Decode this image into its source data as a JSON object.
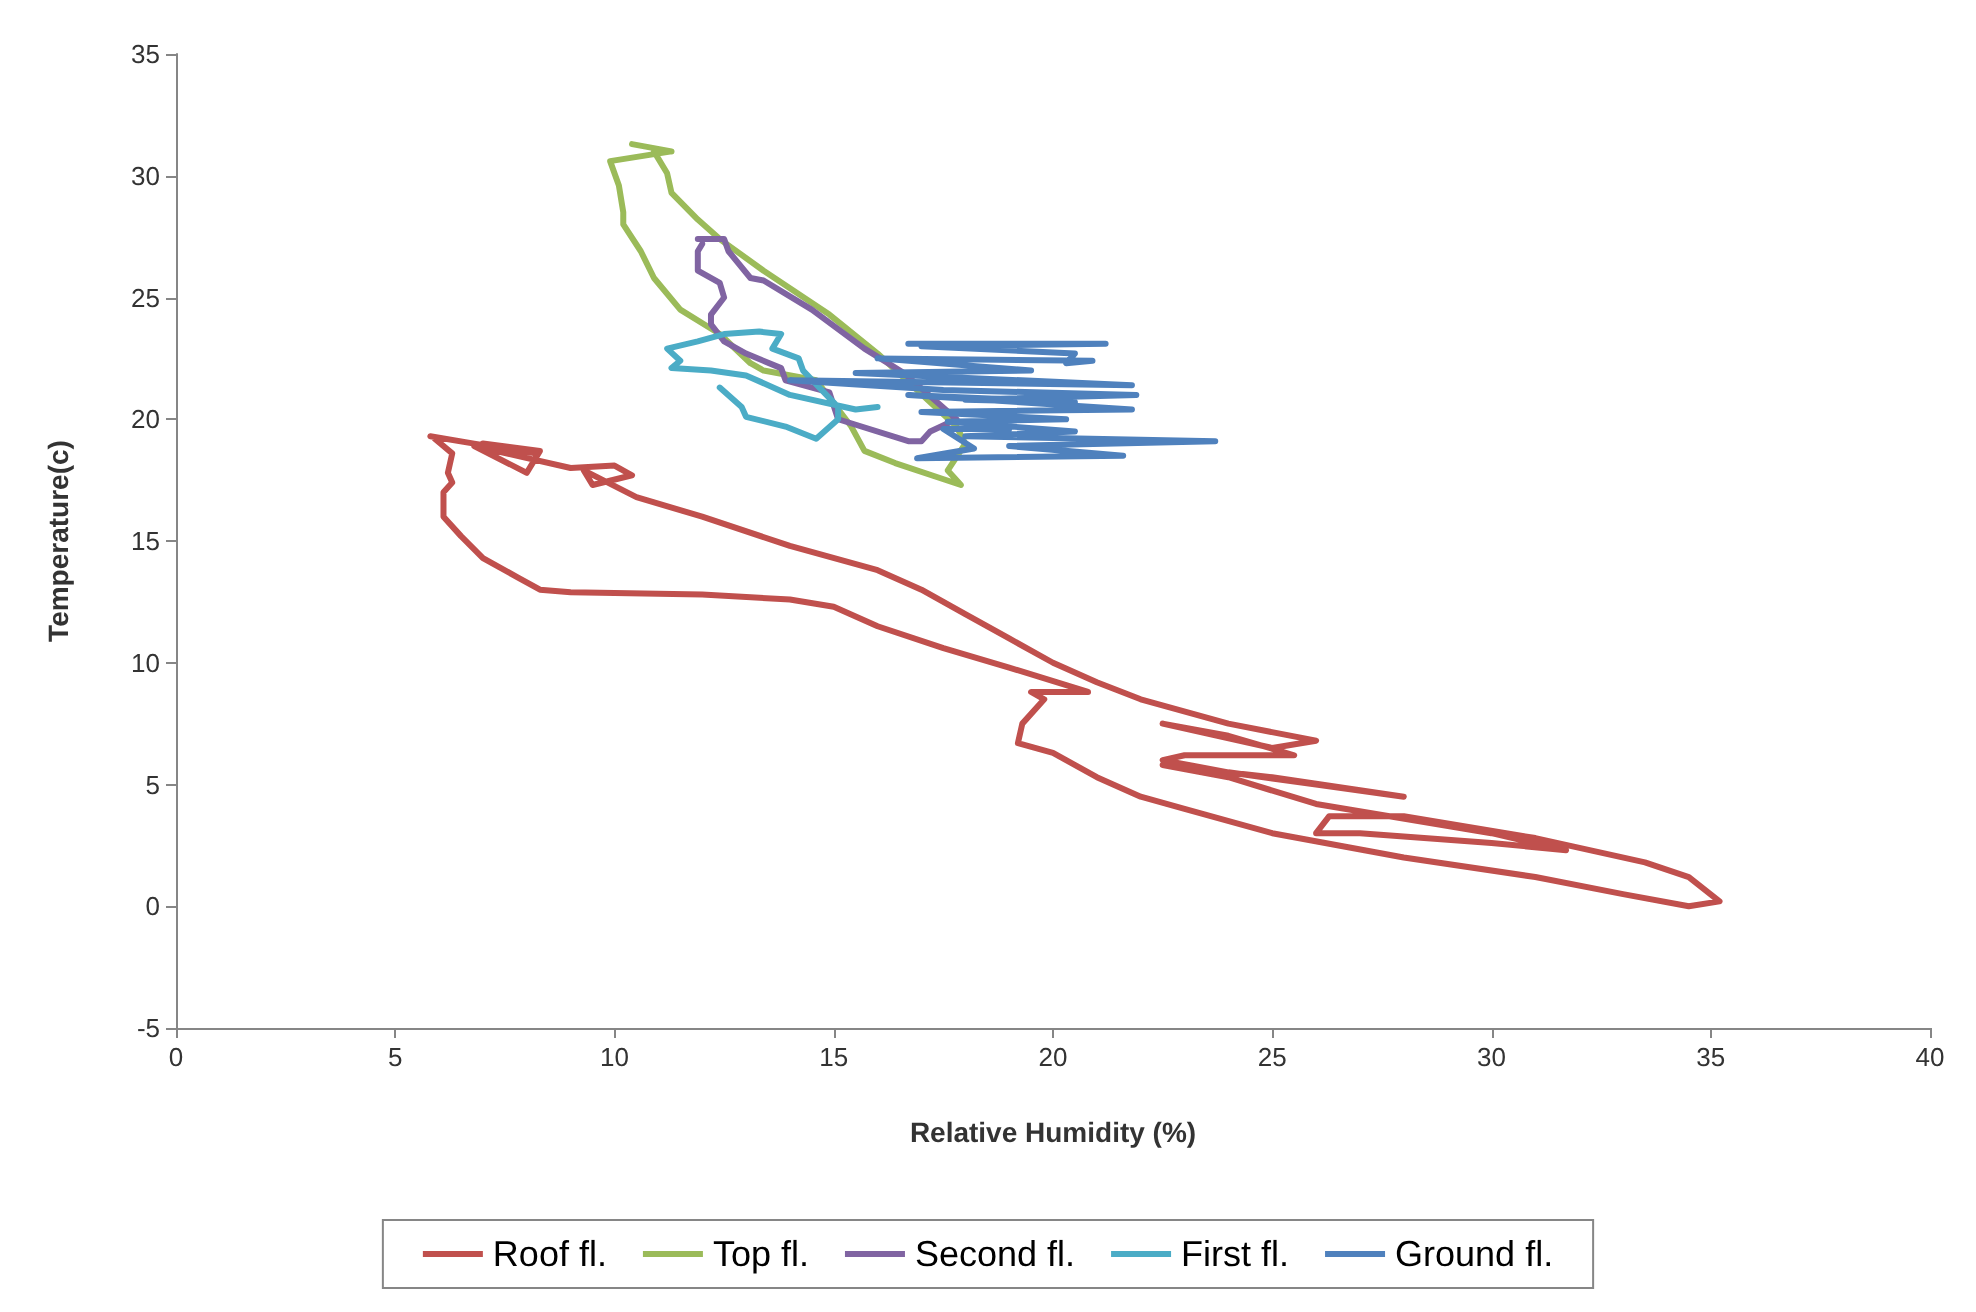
{
  "chart_data": {
    "type": "line",
    "xlabel": "Relative Humidity (%)",
    "ylabel": "Temperature(c)",
    "xlim": [
      0,
      40
    ],
    "xticks": [
      0,
      5,
      10,
      15,
      20,
      25,
      30,
      35,
      40
    ],
    "ylim": [
      -5,
      35
    ],
    "yticks": [
      -5,
      0,
      5,
      10,
      15,
      20,
      25,
      30,
      35
    ],
    "grid": false,
    "legend": "bottom",
    "marker": "none",
    "line_style": "solid",
    "series": [
      {
        "name": "Roof fl.",
        "color": "#c0504d",
        "x": [
          5.8,
          6.8,
          8.2,
          7.0,
          8.3,
          8.0,
          6.8,
          9.0,
          10.0,
          10.4,
          9.5,
          9.3,
          10.5,
          12,
          14,
          16,
          17,
          18,
          19,
          20,
          21,
          22,
          24,
          26,
          25,
          22.5,
          24,
          25.5,
          23,
          22.5,
          24,
          26,
          28,
          25,
          22.5,
          24,
          26,
          30,
          31.7,
          30,
          27,
          26,
          26.3,
          28,
          31,
          33.5,
          34.5,
          35.2,
          34.5,
          33,
          31,
          28,
          25,
          23,
          22,
          21,
          20,
          19.2,
          19.3,
          19.8,
          19.5,
          20.8,
          19,
          17.5,
          16,
          15,
          14,
          12,
          9,
          8.3,
          7.8,
          7,
          6.5,
          6.1,
          6.1,
          6.3,
          6.2,
          6.3,
          5.9
        ],
        "values": [
          19.3,
          19.0,
          18.6,
          19.0,
          18.7,
          17.8,
          18.9,
          18.0,
          18.1,
          17.7,
          17.3,
          17.9,
          16.8,
          16.0,
          14.8,
          13.8,
          13.0,
          12.0,
          11.0,
          10.0,
          9.2,
          8.5,
          7.5,
          6.8,
          6.5,
          7.5,
          7.0,
          6.2,
          6.2,
          6.0,
          5.5,
          5.0,
          4.5,
          5.3,
          5.8,
          5.3,
          4.2,
          3.0,
          2.3,
          2.6,
          3.0,
          3.0,
          3.7,
          3.7,
          2.8,
          1.8,
          1.2,
          0.2,
          0.0,
          0.5,
          1.2,
          2.0,
          3.0,
          4.0,
          4.5,
          5.3,
          6.3,
          6.7,
          7.5,
          8.5,
          8.8,
          8.8,
          9.8,
          10.6,
          11.5,
          12.3,
          12.6,
          12.8,
          12.9,
          13.0,
          13.5,
          14.3,
          15.2,
          16.0,
          17.0,
          17.4,
          17.8,
          18.6,
          19.2
        ]
      },
      {
        "name": "Top fl.",
        "color": "#9bbb59",
        "x": [
          10.4,
          11.3,
          9.9,
          10.1,
          10.2,
          10.2,
          10.6,
          10.9,
          11.5,
          12.4,
          13.1,
          13.4,
          14.6,
          15.4,
          15.7,
          16.4,
          17.9,
          17.6,
          18.0,
          17.8,
          16.0,
          14.9,
          13.4,
          12.4,
          11.9,
          11.3,
          11.2,
          10.9,
          11.3
        ],
        "values": [
          31.3,
          31.0,
          30.6,
          29.6,
          28.5,
          28.0,
          26.9,
          25.8,
          24.5,
          23.5,
          22.3,
          22.0,
          21.6,
          19.7,
          18.7,
          18.2,
          17.3,
          17.9,
          19.0,
          19.7,
          22.7,
          24.3,
          26.1,
          27.4,
          28.2,
          29.3,
          30.1,
          31.0,
          31.0
        ]
      },
      {
        "name": "Second fl.",
        "color": "#8064a2",
        "x": [
          11.9,
          12.5,
          12.6,
          13.1,
          13.4,
          14.5,
          15.7,
          16.6,
          17.8,
          17.2,
          17.0,
          16.7,
          15.1,
          14.9,
          13.9,
          13.8,
          13.0,
          12.5,
          12.2,
          12.2,
          12.5,
          12.4,
          11.9,
          11.9,
          12.0
        ],
        "values": [
          27.4,
          27.4,
          26.9,
          25.8,
          25.7,
          24.5,
          22.9,
          21.9,
          20.0,
          19.5,
          19.1,
          19.1,
          20.0,
          21.1,
          21.6,
          22.1,
          22.7,
          23.2,
          23.9,
          24.3,
          25.0,
          25.6,
          26.1,
          26.9,
          27.2
        ]
      },
      {
        "name": "First fl.",
        "color": "#4bacc6",
        "x": [
          12.4,
          12.9,
          13.0,
          13.9,
          14.6,
          15.1,
          15.1,
          14.3,
          14.2,
          13.6,
          13.8,
          13.3,
          12.5,
          11.9,
          11.2,
          11.5,
          11.3,
          12.2,
          13.0,
          14.0,
          15.5,
          16.0
        ],
        "values": [
          21.3,
          20.5,
          20.1,
          19.7,
          19.2,
          20.0,
          20.5,
          22.0,
          22.5,
          22.9,
          23.5,
          23.6,
          23.5,
          23.2,
          22.9,
          22.4,
          22.1,
          22.0,
          21.8,
          21.0,
          20.4,
          20.5
        ]
      },
      {
        "name": "Ground fl.",
        "color": "#4f81bd",
        "x": [
          16.7,
          21.2,
          17.0,
          20.5,
          20.3,
          20.9,
          16.0,
          19.5,
          15.5,
          21.8,
          14.0,
          17.5,
          21.9,
          18.0,
          20.5,
          16.7,
          21.8,
          17.0,
          20.3,
          17.6,
          20.5,
          18.0,
          23.7,
          19.0,
          21.6,
          16.9,
          18.2,
          17.5,
          19.0
        ],
        "values": [
          23.1,
          23.1,
          23.0,
          22.7,
          22.3,
          22.4,
          22.5,
          22.0,
          21.9,
          21.4,
          21.6,
          21.2,
          21.0,
          20.8,
          20.7,
          21.0,
          20.4,
          20.3,
          20.0,
          19.9,
          19.5,
          19.3,
          19.1,
          18.9,
          18.5,
          18.4,
          18.8,
          19.6,
          19.6
        ]
      }
    ]
  }
}
